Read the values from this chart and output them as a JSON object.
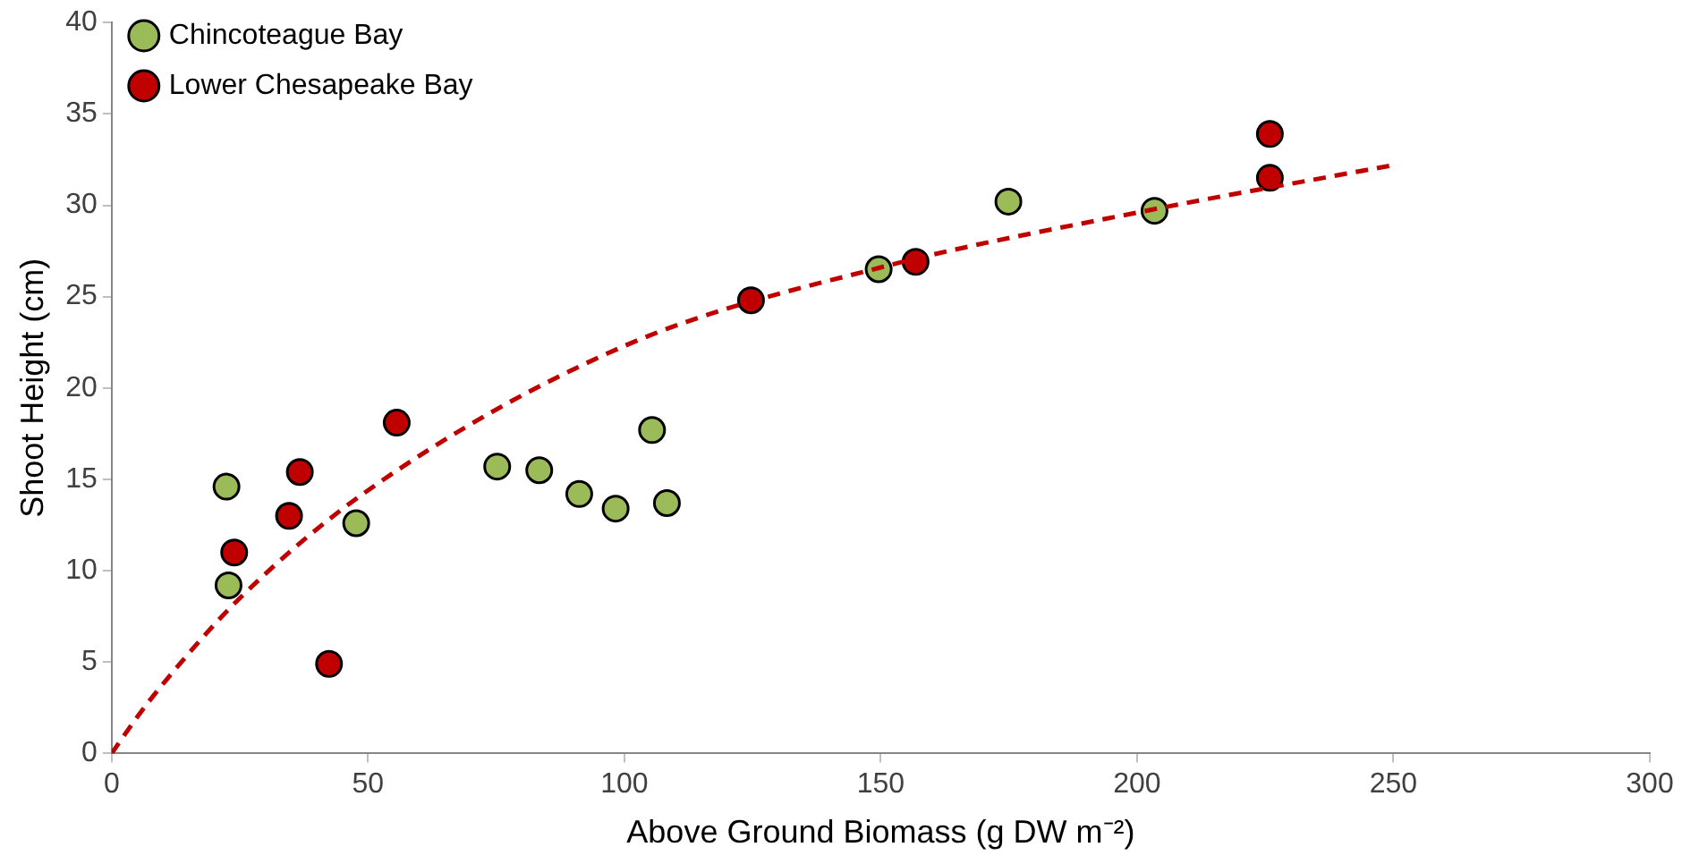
{
  "chart_data": {
    "type": "scatter",
    "xlabel": "Above Ground Biomass (g DW m⁻²)",
    "ylabel": "Shoot Height (cm)",
    "xlim": [
      0,
      300
    ],
    "xticks": [
      0,
      50,
      100,
      150,
      200,
      250,
      300
    ],
    "ylim": [
      0,
      40
    ],
    "yticks": [
      0,
      5,
      10,
      15,
      20,
      25,
      30,
      35,
      40
    ],
    "grid": false,
    "legend": "top left",
    "marker": "circle",
    "series": [
      {
        "name": "Chincoteague Bay",
        "color": "#9bbb59",
        "x": [
          22.4,
          22.8,
          47.7,
          75.2,
          83.4,
          91.2,
          98.3,
          105.4,
          108.3,
          149.6,
          174.9,
          203.4
        ],
        "values": [
          14.6,
          9.2,
          12.6,
          15.7,
          15.5,
          14.2,
          13.4,
          17.7,
          13.7,
          26.5,
          30.2,
          29.7
        ]
      },
      {
        "name": "Lower Chesapeake Bay",
        "color": "#c00000",
        "x": [
          23.9,
          34.6,
          36.7,
          42.4,
          55.6,
          124.7,
          156.8,
          225.9,
          225.9
        ],
        "values": [
          11.0,
          13.0,
          15.4,
          4.9,
          18.1,
          24.8,
          26.9,
          33.9,
          31.5
        ]
      },
      {
        "type": "line",
        "color": "#c00000",
        "line_style": "dashed",
        "marker": "none",
        "x": [
          0,
          5,
          10,
          25,
          50,
          100,
          150,
          200,
          250
        ],
        "values": [
          0,
          2,
          3.8,
          8.5,
          14.4,
          22.3,
          26.6,
          29.6,
          32.2
        ]
      }
    ]
  }
}
